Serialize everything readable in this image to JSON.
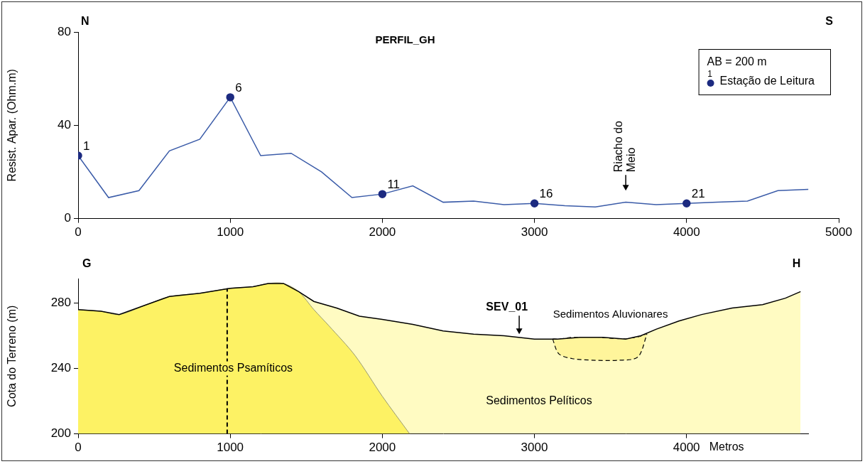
{
  "chart_data": [
    {
      "type": "line",
      "title": "PERFIL_GH",
      "direction_labels": [
        "N",
        "S"
      ],
      "y_label": "Resist. Apar. (Ohm.m)",
      "x": [
        0,
        200,
        400,
        600,
        800,
        1000,
        1200,
        1400,
        1600,
        1800,
        2000,
        2200,
        2400,
        2600,
        2800,
        3000,
        3200,
        3400,
        3600,
        3800,
        4000,
        4200,
        4400,
        4600,
        4800
      ],
      "series": [
        {
          "name": "Estação de Leitura",
          "color": "#3a5ba8",
          "marker": "circle",
          "values": [
            27,
            9,
            12,
            29,
            34,
            52,
            27,
            28,
            20,
            9,
            10.5,
            14,
            7,
            7.5,
            6,
            6.5,
            5.5,
            5,
            7,
            6,
            6.5,
            7,
            7.5,
            12,
            12.5
          ]
        }
      ],
      "point_labels": [
        {
          "x": 0,
          "station": 1
        },
        {
          "x": 1000,
          "station": 6
        },
        {
          "x": 2000,
          "station": 11
        },
        {
          "x": 3000,
          "station": 16
        },
        {
          "x": 4000,
          "station": 21
        }
      ],
      "legend": "upper right",
      "legend_notes": [
        "AB = 200 m"
      ],
      "annotations": [
        {
          "text": "Riacho do Meio",
          "x": 3600,
          "y": 12
        }
      ],
      "xlim": [
        0,
        5000
      ],
      "xticks": [
        0,
        1000,
        2000,
        3000,
        4000,
        5000
      ],
      "ylim": [
        0,
        80
      ],
      "yticks": [
        0,
        40,
        80
      ],
      "grid": false
    },
    {
      "type": "area",
      "name": "Sedimentos Pelíticos",
      "label_at": [
        3030,
        220
      ],
      "end_labels": [
        "G",
        "H"
      ],
      "y_label": "Cota do Terreno (m)",
      "x_label": "Metros",
      "color": "#fffbc2",
      "x": [
        0,
        150,
        270,
        450,
        600,
        800,
        1000,
        1150,
        1250,
        1350,
        1450,
        1550,
        1700,
        1850,
        2000,
        2200,
        2400,
        2600,
        2800,
        3000,
        3150,
        3300,
        3450,
        3600,
        3700,
        3800,
        3950,
        4100,
        4300,
        4500,
        4650,
        4750
      ],
      "values": [
        276,
        275,
        273,
        279,
        284,
        286,
        289,
        290,
        292,
        292,
        287,
        281,
        277,
        272,
        270,
        267,
        263,
        261,
        260,
        258,
        258,
        259,
        259,
        258,
        260,
        264,
        269,
        273,
        277,
        279,
        283,
        287
      ],
      "regions": [
        {
          "name": "Sedimentos Psamíticos",
          "color": "#fdf264",
          "label_at": [
            1020,
            240
          ],
          "x": [
            0,
            150,
            270,
            450,
            600,
            800,
            1000,
            1150,
            1250,
            1350,
            1450,
            1550,
            1650,
            1820,
            2000,
            2180
          ],
          "y": [
            276,
            275,
            273,
            279,
            284,
            286,
            289,
            290,
            292,
            292,
            287,
            276,
            266,
            248,
            223,
            200
          ]
        },
        {
          "name": "Sedimentos Aluvionares",
          "color": "#fff59b",
          "line_style": "dashed",
          "label_at": [
            3500,
            273
          ],
          "x": [
            3120,
            3160,
            3250,
            3400,
            3550,
            3680,
            3740
          ],
          "top": [
            258,
            258,
            259,
            259,
            258,
            259,
            261
          ],
          "bottom": [
            258,
            249,
            246,
            245,
            245,
            247,
            261
          ]
        }
      ],
      "annotations": [
        {
          "text": "SEV_01",
          "x": 2900,
          "y": 261
        }
      ],
      "vlines": [
        {
          "x": 980,
          "y": [
            200,
            289
          ],
          "line_style": "dashed"
        }
      ],
      "xlim": [
        0,
        4800
      ],
      "xticks": [
        0,
        1000,
        2000,
        3000,
        4000
      ],
      "ylim": [
        200,
        295
      ],
      "yticks": [
        200,
        240,
        280
      ],
      "grid": false
    }
  ]
}
